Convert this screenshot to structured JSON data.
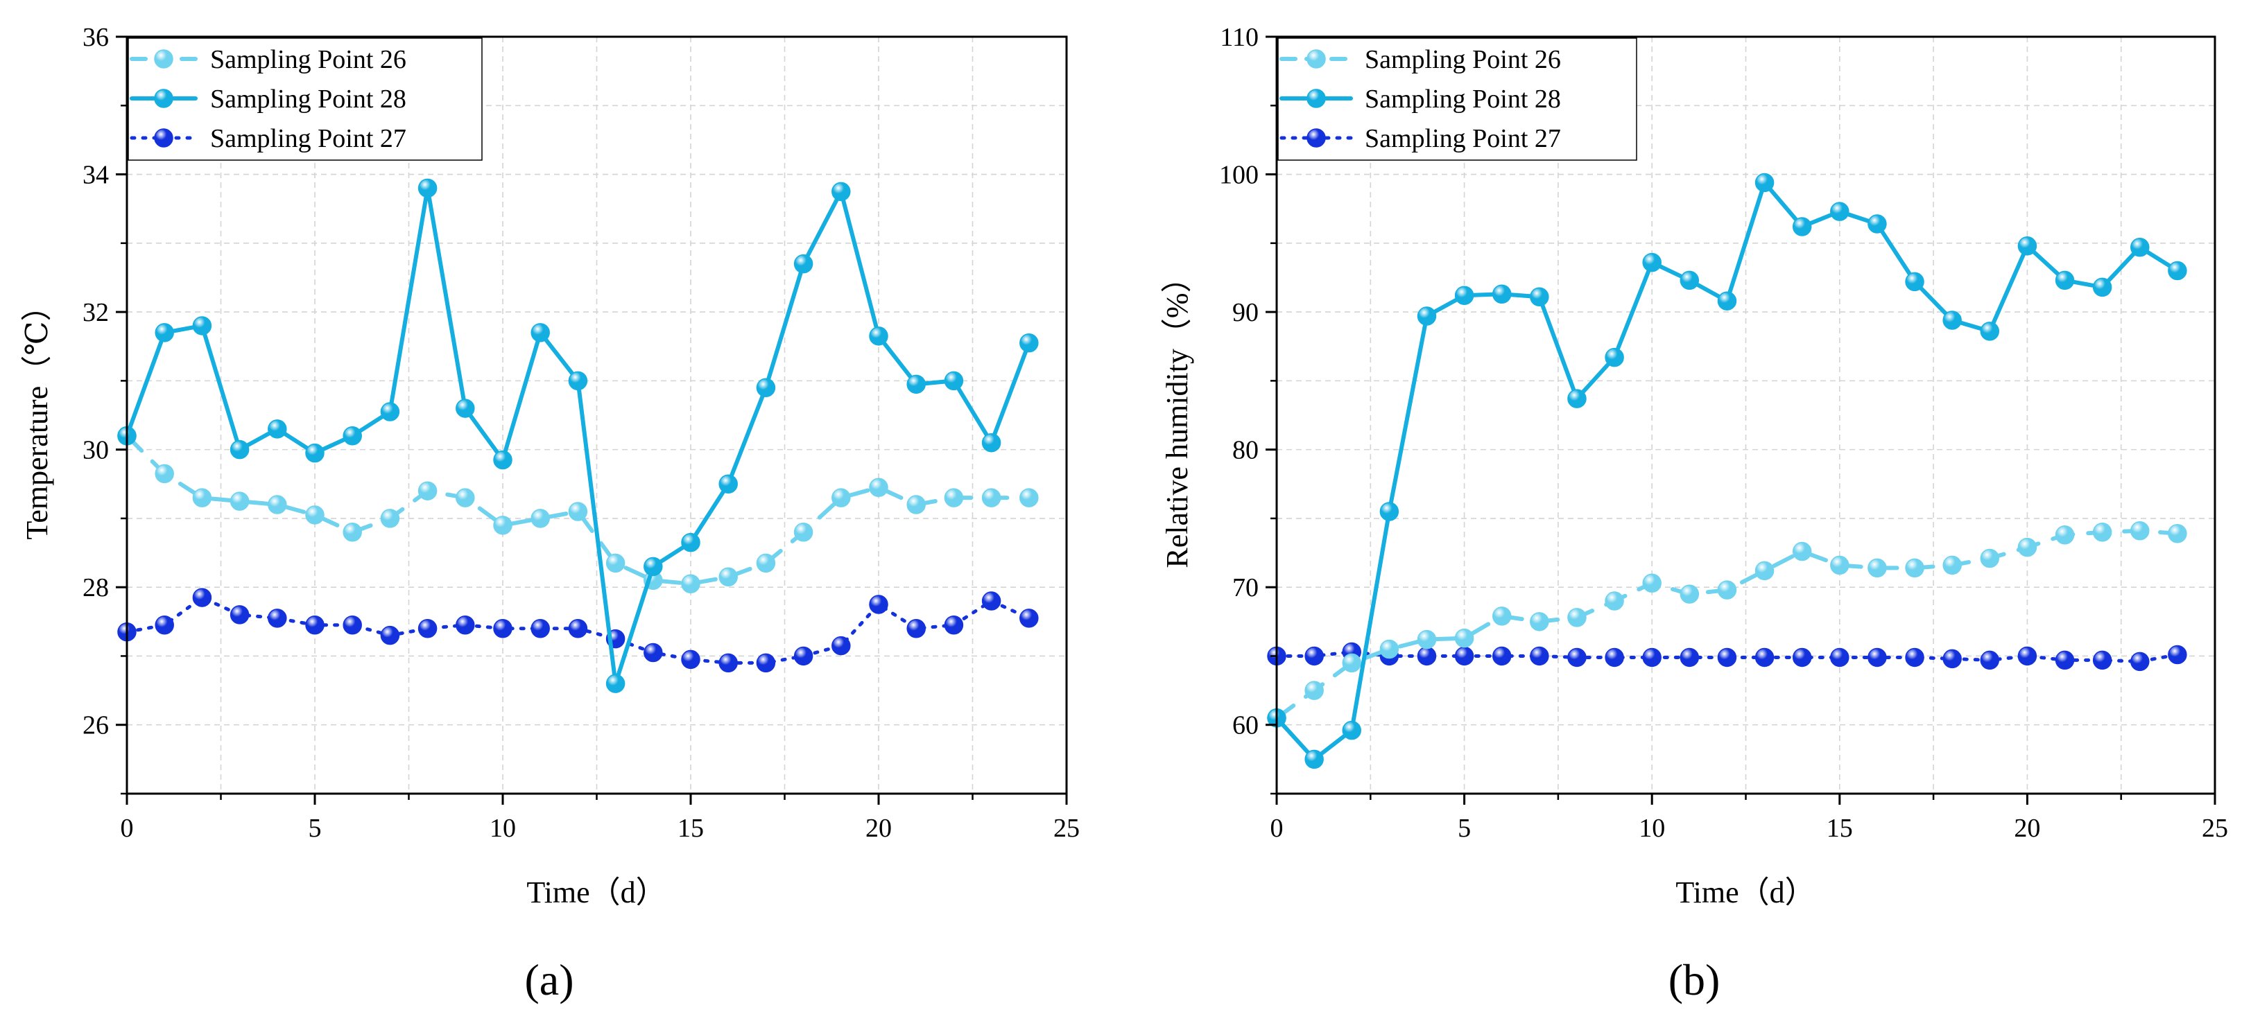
{
  "colors": {
    "sp26": "#6fd2ee",
    "sp28": "#14aee0",
    "sp27": "#1432dc",
    "grid": "#d4d4d4"
  },
  "chart_data": [
    {
      "type": "line",
      "panel_label": "(a)",
      "title": "",
      "xlabel": "Time（d）",
      "ylabel": "Temperature（℃）",
      "xlim": [
        0,
        25
      ],
      "ylim": [
        25,
        36
      ],
      "xticks": [
        0,
        5,
        10,
        15,
        20,
        25
      ],
      "yticks": [
        26,
        28,
        30,
        32,
        34,
        36
      ],
      "grid": true,
      "legend_position": "top-left",
      "x": [
        0,
        1,
        2,
        3,
        4,
        5,
        6,
        7,
        8,
        9,
        10,
        11,
        12,
        13,
        14,
        15,
        16,
        17,
        18,
        19,
        20,
        21,
        22,
        23,
        24
      ],
      "series": [
        {
          "name": "Sampling Point 26",
          "style": "dashed",
          "color": "#6fd2ee",
          "values": [
            30.2,
            29.65,
            29.3,
            29.25,
            29.2,
            29.05,
            28.8,
            29.0,
            29.4,
            29.3,
            28.9,
            29.0,
            29.1,
            28.35,
            28.1,
            28.05,
            28.15,
            28.35,
            28.8,
            29.3,
            29.45,
            29.2,
            29.3,
            29.3,
            29.3
          ]
        },
        {
          "name": "Sampling Point 28",
          "style": "solid",
          "color": "#14aee0",
          "values": [
            30.2,
            31.7,
            31.8,
            30.0,
            30.3,
            29.95,
            30.2,
            30.55,
            33.8,
            30.6,
            29.85,
            31.7,
            31.0,
            26.6,
            28.3,
            28.65,
            29.5,
            30.9,
            32.7,
            33.75,
            31.65,
            30.95,
            31.0,
            30.1,
            31.55
          ]
        },
        {
          "name": "Sampling Point 27",
          "style": "dotted",
          "color": "#1432dc",
          "values": [
            27.35,
            27.45,
            27.85,
            27.6,
            27.55,
            27.45,
            27.45,
            27.3,
            27.4,
            27.45,
            27.4,
            27.4,
            27.4,
            27.25,
            27.05,
            26.95,
            26.9,
            26.9,
            27.0,
            27.15,
            27.75,
            27.4,
            27.45,
            27.8,
            27.55
          ]
        }
      ]
    },
    {
      "type": "line",
      "panel_label": "(b)",
      "title": "",
      "xlabel": "Time（d）",
      "ylabel": "Relative humidity（%）",
      "xlim": [
        0,
        25
      ],
      "ylim": [
        55,
        110
      ],
      "xticks": [
        0,
        5,
        10,
        15,
        20,
        25
      ],
      "yticks": [
        60,
        70,
        80,
        90,
        100,
        110
      ],
      "grid": true,
      "legend_position": "top-left",
      "x": [
        0,
        1,
        2,
        3,
        4,
        5,
        6,
        7,
        8,
        9,
        10,
        11,
        12,
        13,
        14,
        15,
        16,
        17,
        18,
        19,
        20,
        21,
        22,
        23,
        24
      ],
      "series": [
        {
          "name": "Sampling Point 26",
          "style": "dashed",
          "color": "#6fd2ee",
          "values": [
            60.5,
            62.5,
            64.5,
            65.5,
            66.2,
            66.3,
            67.9,
            67.5,
            67.8,
            69.0,
            70.3,
            69.5,
            69.8,
            71.2,
            72.6,
            71.6,
            71.4,
            71.4,
            71.6,
            72.1,
            72.9,
            73.8,
            74.0,
            74.1,
            73.9
          ]
        },
        {
          "name": "Sampling Point 28",
          "style": "solid",
          "color": "#14aee0",
          "values": [
            60.5,
            57.5,
            59.6,
            75.5,
            89.7,
            91.2,
            91.3,
            91.1,
            83.7,
            86.7,
            93.6,
            92.3,
            90.8,
            99.4,
            96.2,
            97.3,
            96.4,
            92.2,
            89.4,
            88.6,
            94.8,
            92.3,
            91.8,
            94.7,
            93.0
          ]
        },
        {
          "name": "Sampling Point 27",
          "style": "dotted",
          "color": "#1432dc",
          "values": [
            65.0,
            65.0,
            65.3,
            65.0,
            65.0,
            65.0,
            65.0,
            65.0,
            64.9,
            64.9,
            64.9,
            64.9,
            64.9,
            64.9,
            64.9,
            64.9,
            64.9,
            64.9,
            64.8,
            64.7,
            65.0,
            64.7,
            64.7,
            64.6,
            65.1
          ]
        }
      ]
    }
  ]
}
